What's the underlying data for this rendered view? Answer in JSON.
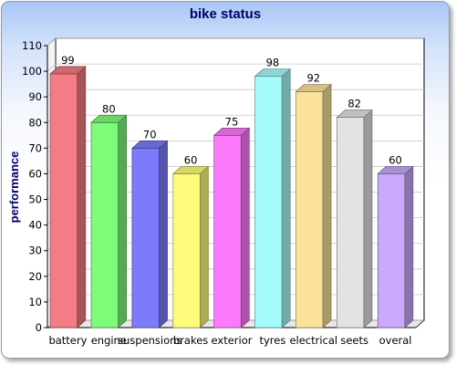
{
  "chart_data": {
    "type": "bar",
    "title": "bike status",
    "xlabel": "",
    "ylabel": "performance",
    "ylim": [
      0,
      110
    ],
    "yticks": [
      0,
      10,
      20,
      30,
      40,
      50,
      60,
      70,
      80,
      90,
      100,
      110
    ],
    "categories": [
      "battery",
      "engine",
      "suspensions",
      "brakes",
      "exterior",
      "tyres",
      "electrical",
      "seets",
      "overal"
    ],
    "values": [
      99,
      80,
      70,
      60,
      75,
      98,
      92,
      82,
      60
    ],
    "colors": [
      "#f47c85",
      "#7dfc7a",
      "#7b7bfb",
      "#fdfd7b",
      "#fc7afc",
      "#a5fbfb",
      "#fbe29b",
      "#e2e2e2",
      "#c8a9fb"
    ],
    "grid": true,
    "style": "3d"
  }
}
